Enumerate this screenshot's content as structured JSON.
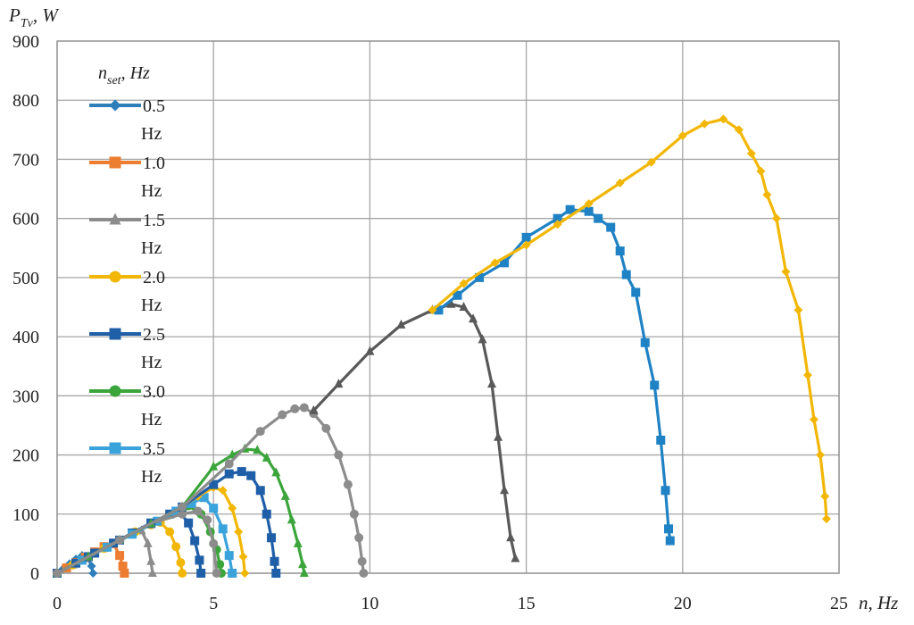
{
  "chart_data": {
    "type": "line",
    "xlabel": "n, Hz",
    "ylabel_main": "P",
    "ylabel_sub": "Tv",
    "ylabel_unit": ", W",
    "xlim": [
      0,
      25
    ],
    "ylim": [
      0,
      900
    ],
    "xticks": [
      0,
      5,
      10,
      15,
      20,
      25
    ],
    "yticks": [
      0,
      100,
      200,
      300,
      400,
      500,
      600,
      700,
      800,
      900
    ],
    "grid": true,
    "legend": {
      "position": "top-left",
      "title_main": "n",
      "title_sub": "set",
      "title_unit": ", Hz",
      "unit_line": "Hz"
    },
    "series": [
      {
        "name": "0.5",
        "color": "#2e7fb9",
        "marker": "diamond",
        "x": [
          0.0,
          0.2,
          0.4,
          0.6,
          0.8,
          1.0,
          1.1,
          1.15
        ],
        "y": [
          0,
          8,
          16,
          24,
          30,
          25,
          12,
          0
        ]
      },
      {
        "name": "1.0",
        "color": "#ed7d31",
        "marker": "square",
        "x": [
          0.0,
          0.3,
          0.6,
          0.9,
          1.2,
          1.5,
          1.8,
          2.0,
          2.1,
          2.15
        ],
        "y": [
          0,
          9,
          18,
          27,
          36,
          45,
          50,
          30,
          12,
          0
        ]
      },
      {
        "name": "1.5",
        "color": "#8c8c8c",
        "marker": "triangle",
        "x": [
          0.0,
          0.5,
          1.0,
          1.5,
          2.0,
          2.4,
          2.7,
          2.9,
          3.0,
          3.05
        ],
        "y": [
          0,
          14,
          28,
          42,
          56,
          68,
          72,
          50,
          20,
          0
        ]
      },
      {
        "name": "2.0",
        "color": "#f2b705",
        "marker": "circle",
        "x": [
          0.0,
          0.5,
          1.0,
          1.5,
          2.0,
          2.5,
          3.0,
          3.3,
          3.6,
          3.8,
          3.95,
          4.0
        ],
        "y": [
          0,
          14,
          28,
          42,
          56,
          70,
          82,
          86,
          70,
          45,
          18,
          0
        ]
      },
      {
        "name": "2.5",
        "color": "#1f5fa8",
        "marker": "square",
        "x": [
          0.0,
          0.6,
          1.2,
          1.8,
          2.4,
          3.0,
          3.6,
          3.9,
          4.2,
          4.4,
          4.55,
          4.6
        ],
        "y": [
          0,
          17,
          34,
          51,
          68,
          85,
          100,
          104,
          85,
          55,
          22,
          0
        ]
      },
      {
        "name": "3.0",
        "color": "#3ba53b",
        "marker": "circle",
        "x": [
          0.0,
          0.8,
          1.6,
          2.4,
          3.2,
          3.8,
          4.2,
          4.6,
          4.9,
          5.1,
          5.2,
          5.25
        ],
        "y": [
          0,
          22,
          44,
          66,
          88,
          104,
          114,
          100,
          70,
          40,
          15,
          0
        ]
      },
      {
        "name": "3.5",
        "color": "#3ba3dc",
        "marker": "square",
        "x": [
          0.0,
          0.8,
          1.6,
          2.4,
          3.2,
          3.8,
          4.3,
          4.7,
          5.0,
          5.3,
          5.5,
          5.6
        ],
        "y": [
          0,
          22,
          44,
          66,
          88,
          105,
          118,
          128,
          110,
          75,
          30,
          0
        ]
      },
      {
        "name": "",
        "color": "#f2b705",
        "marker": "diamond",
        "x": [
          0.0,
          1.0,
          2.0,
          3.0,
          4.0,
          4.5,
          5.0,
          5.3,
          5.6,
          5.8,
          5.95,
          6.0
        ],
        "y": [
          0,
          28,
          56,
          84,
          112,
          130,
          145,
          140,
          110,
          70,
          28,
          0
        ]
      },
      {
        "name": "",
        "color": "#8c8c8c",
        "marker": "circle",
        "x": [
          0.0,
          1.0,
          2.0,
          3.0,
          4.0,
          4.5,
          4.8,
          5.0,
          5.1
        ],
        "y": [
          0,
          28,
          56,
          84,
          100,
          105,
          90,
          50,
          0
        ]
      },
      {
        "name": "",
        "color": "#1f5fa8",
        "marker": "square",
        "x": [
          0.0,
          1.0,
          2.0,
          3.0,
          4.0,
          5.0,
          5.5,
          5.9,
          6.2,
          6.5,
          6.7,
          6.85,
          6.95,
          7.0
        ],
        "y": [
          0,
          28,
          56,
          84,
          112,
          150,
          168,
          172,
          165,
          140,
          100,
          60,
          20,
          0
        ]
      },
      {
        "name": "",
        "color": "#3ba53b",
        "marker": "triangle",
        "x": [
          0.0,
          1.0,
          2.0,
          3.0,
          4.0,
          5.0,
          5.6,
          6.0,
          6.4,
          6.7,
          7.0,
          7.3,
          7.5,
          7.7,
          7.85,
          7.9
        ],
        "y": [
          0,
          28,
          56,
          84,
          112,
          180,
          200,
          210,
          208,
          195,
          170,
          130,
          90,
          50,
          15,
          0
        ]
      },
      {
        "name": "",
        "color": "#8c8c8c",
        "marker": "circle",
        "x": [
          0.0,
          2.0,
          4.0,
          5.5,
          6.5,
          7.2,
          7.6,
          7.9,
          8.2,
          8.6,
          9.0,
          9.3,
          9.5,
          9.65,
          9.75,
          9.8
        ],
        "y": [
          0,
          56,
          112,
          185,
          240,
          268,
          278,
          280,
          270,
          245,
          200,
          150,
          100,
          60,
          20,
          0
        ]
      },
      {
        "name": "",
        "color": "#595959",
        "marker": "triangle",
        "x": [
          8.2,
          9.0,
          10.0,
          11.0,
          12.0,
          12.6,
          13.0,
          13.3,
          13.6,
          13.9,
          14.1,
          14.3,
          14.5,
          14.65
        ],
        "y": [
          275,
          320,
          375,
          420,
          445,
          455,
          450,
          430,
          395,
          320,
          230,
          140,
          60,
          25
        ]
      },
      {
        "name": "",
        "color": "#1f82c4",
        "marker": "square",
        "x": [
          12.2,
          12.8,
          13.5,
          14.3,
          15.0,
          16.0,
          16.4,
          17.0,
          17.3,
          17.7,
          18.0,
          18.2,
          18.5,
          18.8,
          19.1,
          19.3,
          19.45,
          19.55,
          19.6
        ],
        "y": [
          445,
          470,
          500,
          525,
          568,
          600,
          615,
          612,
          600,
          585,
          545,
          505,
          475,
          390,
          318,
          225,
          140,
          75,
          55
        ]
      },
      {
        "name": "",
        "color": "#f2b705",
        "marker": "diamond",
        "x": [
          12.0,
          13.0,
          14.0,
          15.0,
          16.0,
          17.0,
          18.0,
          19.0,
          20.0,
          20.7,
          21.3,
          21.8,
          22.2,
          22.5,
          22.7,
          23.0,
          23.3,
          23.7,
          24.0,
          24.2,
          24.4,
          24.55,
          24.6
        ],
        "y": [
          445,
          490,
          525,
          555,
          590,
          625,
          660,
          695,
          740,
          760,
          768,
          750,
          710,
          680,
          640,
          600,
          510,
          445,
          335,
          260,
          200,
          130,
          92
        ]
      }
    ]
  }
}
